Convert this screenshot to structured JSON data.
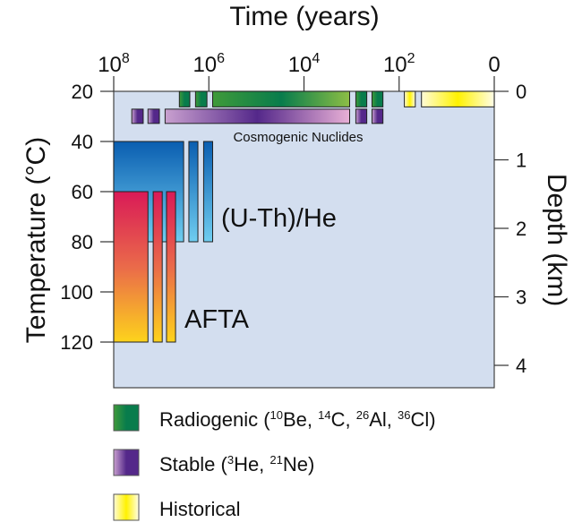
{
  "chart_data": {
    "type": "diagram",
    "title": "Time (years)",
    "ylabel_left": "Temperature (°C)",
    "ylabel_right": "Depth (km)",
    "x_scale": "log10 years (0 at present)",
    "x_ticks": [
      {
        "log10": 8,
        "base": "10",
        "exp": "8"
      },
      {
        "log10": 6,
        "base": "10",
        "exp": "6"
      },
      {
        "log10": 4,
        "base": "10",
        "exp": "4"
      },
      {
        "log10": 2,
        "base": "10",
        "exp": "2"
      },
      {
        "log10": 0,
        "base": "0",
        "exp": ""
      }
    ],
    "temp_ticks": [
      "20",
      "40",
      "60",
      "80",
      "100",
      "120"
    ],
    "depth_ticks": [
      "0",
      "1",
      "2",
      "3",
      "4"
    ],
    "bars": [
      {
        "group": "radiogenic",
        "log10_years": [
          6.62,
          6.4
        ],
        "temp": [
          20,
          26.2
        ]
      },
      {
        "group": "radiogenic",
        "log10_years": [
          6.28,
          6.04
        ],
        "temp": [
          20,
          26.2
        ]
      },
      {
        "group": "radiogenic",
        "log10_years": [
          5.92,
          3.04
        ],
        "temp": [
          20,
          26.2
        ]
      },
      {
        "group": "radiogenic",
        "log10_years": [
          2.91,
          2.68
        ],
        "temp": [
          20,
          26.2
        ]
      },
      {
        "group": "radiogenic",
        "log10_years": [
          2.57,
          2.34
        ],
        "temp": [
          20,
          26.2
        ]
      },
      {
        "group": "historical",
        "log10_years": [
          1.89,
          1.66
        ],
        "temp": [
          20,
          26.2
        ]
      },
      {
        "group": "historical",
        "log10_years": [
          1.53,
          0
        ],
        "temp": [
          20,
          26.2
        ]
      },
      {
        "group": "stable",
        "log10_years": [
          7.62,
          7.38
        ],
        "temp": [
          27.1,
          32.8
        ]
      },
      {
        "group": "stable",
        "log10_years": [
          7.28,
          7.04
        ],
        "temp": [
          27.1,
          32.8
        ]
      },
      {
        "group": "stable",
        "log10_years": [
          6.92,
          3.04
        ],
        "temp": [
          27.1,
          32.8
        ]
      },
      {
        "group": "stable",
        "log10_years": [
          2.91,
          2.68
        ],
        "temp": [
          27.1,
          32.8
        ]
      },
      {
        "group": "stable",
        "log10_years": [
          2.57,
          2.34
        ],
        "temp": [
          27.1,
          32.8
        ]
      },
      {
        "group": "uthhe",
        "log10_years": [
          8,
          6.53
        ],
        "temp": [
          40,
          80
        ]
      },
      {
        "group": "uthhe",
        "log10_years": [
          6.42,
          6.23
        ],
        "temp": [
          40,
          80
        ]
      },
      {
        "group": "uthhe",
        "log10_years": [
          6.11,
          5.92
        ],
        "temp": [
          40,
          80
        ]
      },
      {
        "group": "afta",
        "log10_years": [
          8,
          7.28
        ],
        "temp": [
          60,
          120
        ]
      },
      {
        "group": "afta",
        "log10_years": [
          7.17,
          6.98
        ],
        "temp": [
          60,
          120
        ]
      },
      {
        "group": "afta",
        "log10_years": [
          6.89,
          6.7
        ],
        "temp": [
          60,
          120
        ]
      }
    ],
    "annotations": {
      "cosmogenic": "Cosmogenic Nuclides",
      "uthhe": "(U-Th)/He",
      "afta": "AFTA"
    },
    "legend": [
      {
        "key": "radiogenic",
        "label": "Radiogenic (",
        "parts": [
          [
            "10",
            "Be, "
          ],
          [
            "14",
            "C, "
          ],
          [
            "26",
            "Al, "
          ],
          [
            "36",
            "Cl)"
          ]
        ]
      },
      {
        "key": "stable",
        "label": "Stable (",
        "parts": [
          [
            "3",
            "He, "
          ],
          [
            "21",
            "Ne)"
          ]
        ]
      },
      {
        "key": "historical",
        "label": "Historical",
        "parts": []
      }
    ],
    "colors": {
      "background": "#d3deef",
      "radiogenic": [
        "#3f9a3a",
        "#087c4c",
        "#8dbe45"
      ],
      "stable": [
        "#c9a0cf",
        "#54288a",
        "#e8b0d6"
      ],
      "historical": [
        "#fffbd8",
        "#fff200",
        "#fffde8"
      ],
      "uthhe": [
        "#0a5db0",
        "#6fcdf0"
      ],
      "afta": [
        "#d91a57",
        "#ea6a4a",
        "#fdd31c"
      ]
    }
  }
}
